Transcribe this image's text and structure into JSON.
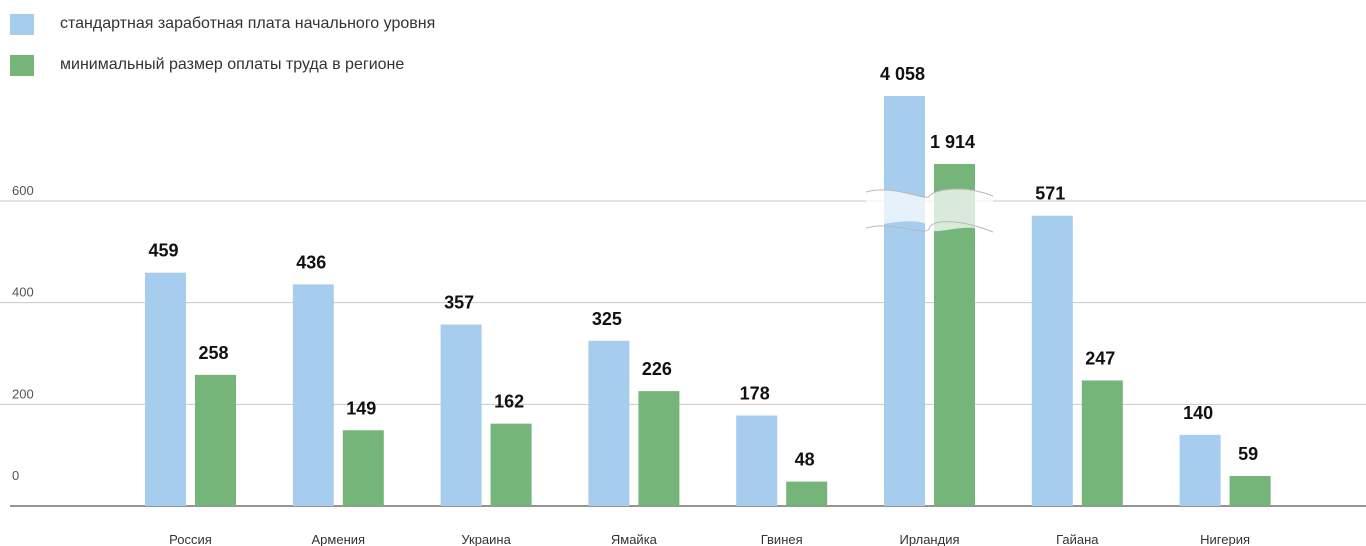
{
  "legend": [
    {
      "label": "стандартная заработная плата начального уровня",
      "color": "#a7cdee"
    },
    {
      "label": "минимальный размер оплаты труда в регионе",
      "color": "#76b57a"
    }
  ],
  "chart_data": {
    "type": "bar",
    "title": "",
    "xlabel": "",
    "ylabel": "",
    "ylim": [
      0,
      600
    ],
    "yticks": [
      "0",
      "200",
      "400",
      "600"
    ],
    "grid": true,
    "legend_position": "top-left",
    "axis_break": {
      "category": "Ирландия"
    },
    "categories": [
      "Россия",
      "Армения",
      "Украина",
      "Ямайка",
      "Гвинея",
      "Ирландия",
      "Гайана",
      "Нигерия"
    ],
    "series": [
      {
        "name": "стандартная заработная плата начального уровня",
        "color": "#a7cdee",
        "values": [
          459,
          436,
          357,
          325,
          178,
          4058,
          571,
          140
        ],
        "labels": [
          "459",
          "436",
          "357",
          "325",
          "178",
          "4 058",
          "571",
          "140"
        ]
      },
      {
        "name": "минимальный размер оплаты труда в регионе",
        "color": "#76b57a",
        "values": [
          258,
          149,
          162,
          226,
          48,
          1914,
          247,
          59
        ],
        "labels": [
          "258",
          "149",
          "162",
          "226",
          "48",
          "1 914",
          "247",
          "59"
        ]
      }
    ]
  }
}
